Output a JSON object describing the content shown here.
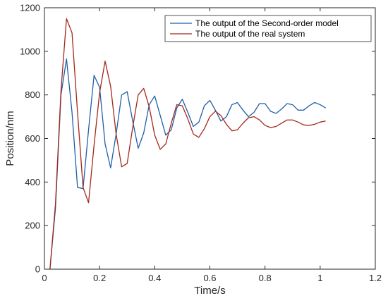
{
  "chart_data": {
    "type": "line",
    "xlabel": "Time/s",
    "ylabel": "Position/nm",
    "xlim": [
      0,
      1.2
    ],
    "ylim": [
      0,
      1200
    ],
    "xticks": [
      0,
      0.2,
      0.4,
      0.6,
      0.8,
      1,
      1.2
    ],
    "xtick_labels": [
      "0",
      "0.2",
      "0.4",
      "0.6",
      "0.8",
      "1",
      "1.2"
    ],
    "yticks": [
      0,
      200,
      400,
      600,
      800,
      1000,
      1200
    ],
    "ytick_labels": [
      "0",
      "200",
      "400",
      "600",
      "800",
      "1000",
      "1200"
    ],
    "grid": false,
    "legend_position": "top-right",
    "series": [
      {
        "name": "The output of the Second-order model",
        "color": "#1f5fa8",
        "points": [
          [
            0.02,
            0
          ],
          [
            0.04,
            280
          ],
          [
            0.06,
            800
          ],
          [
            0.08,
            965
          ],
          [
            0.1,
            720
          ],
          [
            0.12,
            375
          ],
          [
            0.14,
            370
          ],
          [
            0.16,
            640
          ],
          [
            0.18,
            890
          ],
          [
            0.2,
            835
          ],
          [
            0.22,
            575
          ],
          [
            0.24,
            465
          ],
          [
            0.26,
            620
          ],
          [
            0.28,
            800
          ],
          [
            0.3,
            815
          ],
          [
            0.32,
            680
          ],
          [
            0.34,
            555
          ],
          [
            0.36,
            625
          ],
          [
            0.38,
            755
          ],
          [
            0.4,
            795
          ],
          [
            0.42,
            705
          ],
          [
            0.44,
            615
          ],
          [
            0.46,
            640
          ],
          [
            0.48,
            740
          ],
          [
            0.5,
            780
          ],
          [
            0.52,
            720
          ],
          [
            0.54,
            655
          ],
          [
            0.56,
            675
          ],
          [
            0.58,
            750
          ],
          [
            0.6,
            775
          ],
          [
            0.62,
            730
          ],
          [
            0.64,
            680
          ],
          [
            0.66,
            700
          ],
          [
            0.68,
            755
          ],
          [
            0.7,
            765
          ],
          [
            0.72,
            730
          ],
          [
            0.74,
            700
          ],
          [
            0.76,
            720
          ],
          [
            0.78,
            760
          ],
          [
            0.8,
            760
          ],
          [
            0.82,
            725
          ],
          [
            0.84,
            715
          ],
          [
            0.86,
            735
          ],
          [
            0.88,
            760
          ],
          [
            0.9,
            755
          ],
          [
            0.92,
            730
          ],
          [
            0.94,
            730
          ],
          [
            0.96,
            750
          ],
          [
            0.98,
            765
          ],
          [
            1.0,
            755
          ],
          [
            1.02,
            740
          ]
        ]
      },
      {
        "name": "The output of the real system",
        "color": "#a3281b",
        "points": [
          [
            0.02,
            0
          ],
          [
            0.04,
            300
          ],
          [
            0.06,
            820
          ],
          [
            0.08,
            1150
          ],
          [
            0.1,
            1085
          ],
          [
            0.12,
            720
          ],
          [
            0.14,
            375
          ],
          [
            0.16,
            305
          ],
          [
            0.18,
            570
          ],
          [
            0.2,
            810
          ],
          [
            0.22,
            955
          ],
          [
            0.24,
            840
          ],
          [
            0.26,
            620
          ],
          [
            0.28,
            470
          ],
          [
            0.3,
            485
          ],
          [
            0.32,
            650
          ],
          [
            0.34,
            800
          ],
          [
            0.36,
            830
          ],
          [
            0.38,
            745
          ],
          [
            0.4,
            615
          ],
          [
            0.42,
            550
          ],
          [
            0.44,
            575
          ],
          [
            0.46,
            670
          ],
          [
            0.48,
            755
          ],
          [
            0.5,
            750
          ],
          [
            0.52,
            690
          ],
          [
            0.54,
            620
          ],
          [
            0.56,
            605
          ],
          [
            0.58,
            645
          ],
          [
            0.6,
            700
          ],
          [
            0.62,
            725
          ],
          [
            0.64,
            705
          ],
          [
            0.66,
            665
          ],
          [
            0.68,
            635
          ],
          [
            0.7,
            640
          ],
          [
            0.72,
            670
          ],
          [
            0.74,
            695
          ],
          [
            0.76,
            700
          ],
          [
            0.78,
            685
          ],
          [
            0.8,
            660
          ],
          [
            0.82,
            650
          ],
          [
            0.84,
            655
          ],
          [
            0.86,
            670
          ],
          [
            0.88,
            685
          ],
          [
            0.9,
            685
          ],
          [
            0.92,
            675
          ],
          [
            0.94,
            662
          ],
          [
            0.96,
            660
          ],
          [
            0.98,
            665
          ],
          [
            1.0,
            675
          ],
          [
            1.02,
            680
          ]
        ]
      }
    ]
  }
}
